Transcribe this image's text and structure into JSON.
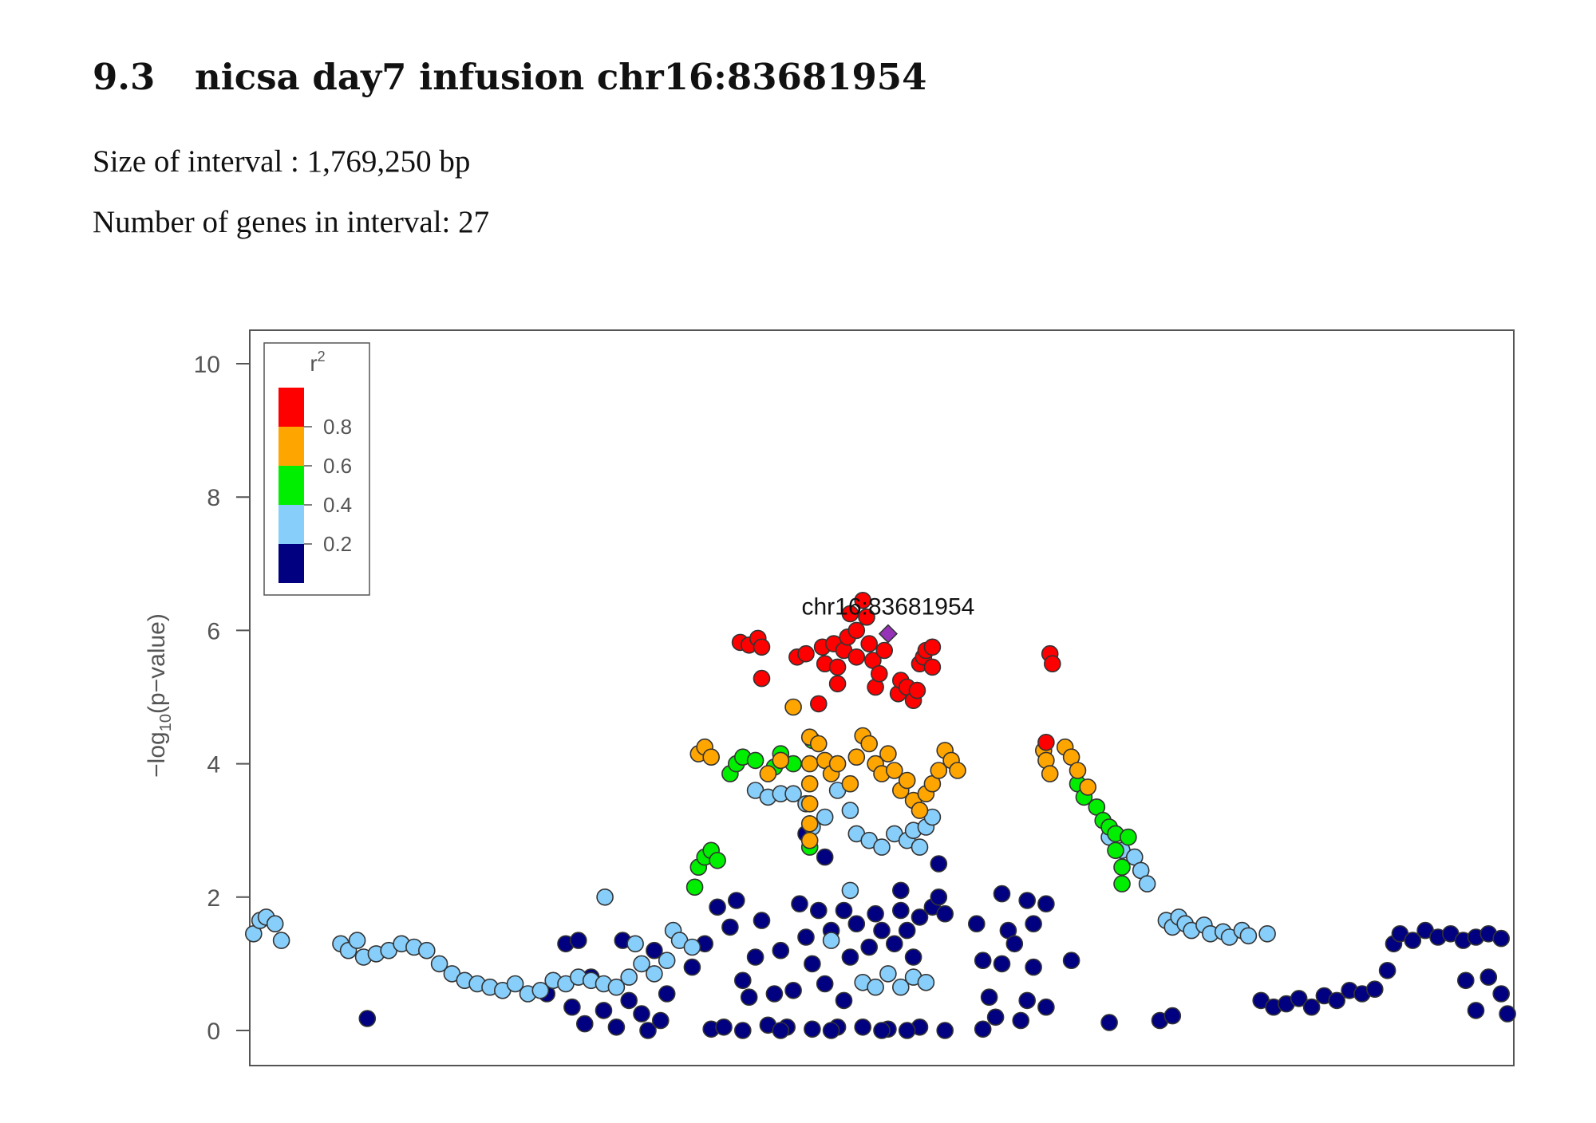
{
  "heading": {
    "section_number": "9.3",
    "title": "nicsa day7 infusion chr16:83681954"
  },
  "info": {
    "interval_label": "Size of interval : ",
    "interval_value": "1,769,250 bp",
    "genes_label": "Number of genes in interval: ",
    "genes_value": "27"
  },
  "chart_data": {
    "type": "scatter",
    "title": "",
    "xlabel": "",
    "ylabel": "−log10(p−value)",
    "ylim": [
      -0.5,
      10.5
    ],
    "yticks": [
      0,
      2,
      4,
      6,
      8,
      10
    ],
    "xlim": [
      0,
      100
    ],
    "x_axis_shown": false,
    "grid": false,
    "legend": {
      "title": "r²",
      "placement": "top-left",
      "bins": [
        {
          "range": [
            0.8,
            1.0
          ],
          "color": "#FF0000"
        },
        {
          "range": [
            0.6,
            0.8
          ],
          "color": "#FFA500"
        },
        {
          "range": [
            0.4,
            0.6
          ],
          "color": "#00EE00"
        },
        {
          "range": [
            0.2,
            0.4
          ],
          "color": "#87CEFA"
        },
        {
          "range": [
            0.0,
            0.2
          ],
          "color": "#000080"
        }
      ],
      "tick_labels": [
        "0.8",
        "0.6",
        "0.4",
        "0.2"
      ]
    },
    "index_snp": {
      "label": "chr16:83681954",
      "x": 50.5,
      "y": 5.95,
      "color": "#9632B8",
      "shape": "diamond"
    },
    "series": [
      {
        "r2_bin": "0.8-1.0",
        "color": "#FF0000",
        "points": [
          [
            38.8,
            5.82
          ],
          [
            39.5,
            5.78
          ],
          [
            40.2,
            5.88
          ],
          [
            40.5,
            5.75
          ],
          [
            40.5,
            5.28
          ],
          [
            43.3,
            5.6
          ],
          [
            44,
            5.65
          ],
          [
            45.3,
            5.75
          ],
          [
            45.5,
            5.5
          ],
          [
            46.2,
            5.8
          ],
          [
            46.5,
            5.45
          ],
          [
            46.5,
            5.2
          ],
          [
            47,
            5.7
          ],
          [
            47.3,
            5.9
          ],
          [
            47.5,
            6.25
          ],
          [
            48,
            5.6
          ],
          [
            48,
            6.0
          ],
          [
            48.5,
            6.45
          ],
          [
            48.8,
            6.2
          ],
          [
            49,
            5.8
          ],
          [
            49.3,
            5.55
          ],
          [
            49.5,
            5.15
          ],
          [
            49.8,
            5.35
          ],
          [
            50.2,
            5.7
          ],
          [
            51.3,
            5.05
          ],
          [
            51.5,
            5.25
          ],
          [
            52,
            5.15
          ],
          [
            52.5,
            4.95
          ],
          [
            52.8,
            5.1
          ],
          [
            53,
            5.5
          ],
          [
            53.3,
            5.6
          ],
          [
            53.5,
            5.7
          ],
          [
            54,
            5.75
          ],
          [
            54,
            5.45
          ],
          [
            63.3,
            5.65
          ],
          [
            63.5,
            5.5
          ],
          [
            45,
            4.9
          ],
          [
            63,
            4.32
          ]
        ]
      },
      {
        "r2_bin": "0.6-0.8",
        "color": "#FFA500",
        "points": [
          [
            35.5,
            4.15
          ],
          [
            36,
            4.25
          ],
          [
            36.5,
            4.1
          ],
          [
            41,
            3.85
          ],
          [
            42,
            4.05
          ],
          [
            43,
            4.85
          ],
          [
            44.3,
            4.4
          ],
          [
            44.3,
            4.0
          ],
          [
            44.3,
            3.7
          ],
          [
            44.3,
            3.4
          ],
          [
            44.3,
            3.1
          ],
          [
            44.3,
            2.85
          ],
          [
            45,
            4.3
          ],
          [
            45.5,
            4.05
          ],
          [
            46,
            3.85
          ],
          [
            46.5,
            4.0
          ],
          [
            47.5,
            3.7
          ],
          [
            48,
            4.1
          ],
          [
            48.5,
            4.42
          ],
          [
            49,
            4.3
          ],
          [
            49.5,
            4.0
          ],
          [
            50,
            3.85
          ],
          [
            50.5,
            4.15
          ],
          [
            51,
            3.9
          ],
          [
            51.5,
            3.6
          ],
          [
            52,
            3.75
          ],
          [
            52.5,
            3.45
          ],
          [
            53,
            3.3
          ],
          [
            53.5,
            3.55
          ],
          [
            54,
            3.7
          ],
          [
            54.5,
            3.9
          ],
          [
            55,
            4.2
          ],
          [
            55.5,
            4.05
          ],
          [
            56,
            3.9
          ],
          [
            62.8,
            4.2
          ],
          [
            63,
            4.05
          ],
          [
            63.3,
            3.85
          ],
          [
            64.5,
            4.25
          ],
          [
            65,
            4.1
          ],
          [
            65.5,
            3.9
          ],
          [
            66.3,
            3.65
          ]
        ]
      },
      {
        "r2_bin": "0.4-0.6",
        "color": "#00EE00",
        "points": [
          [
            35.2,
            2.15
          ],
          [
            35.5,
            2.45
          ],
          [
            36,
            2.6
          ],
          [
            36.5,
            2.7
          ],
          [
            37,
            2.55
          ],
          [
            38,
            3.85
          ],
          [
            38.5,
            4.0
          ],
          [
            39,
            4.1
          ],
          [
            40,
            4.05
          ],
          [
            41.5,
            3.95
          ],
          [
            42,
            4.15
          ],
          [
            43,
            4.0
          ],
          [
            44.3,
            2.75
          ],
          [
            44.5,
            4.35
          ],
          [
            65.5,
            3.7
          ],
          [
            66,
            3.5
          ],
          [
            67,
            3.35
          ],
          [
            67.5,
            3.15
          ],
          [
            68,
            3.05
          ],
          [
            68.5,
            2.95
          ],
          [
            68.5,
            2.7
          ],
          [
            69,
            2.45
          ],
          [
            69,
            2.2
          ],
          [
            69.5,
            2.9
          ]
        ]
      },
      {
        "r2_bin": "0.2-0.4",
        "color": "#87CEFA",
        "points": [
          [
            0.3,
            1.45
          ],
          [
            0.8,
            1.65
          ],
          [
            1.3,
            1.7
          ],
          [
            2,
            1.6
          ],
          [
            2.5,
            1.35
          ],
          [
            7.2,
            1.3
          ],
          [
            7.8,
            1.2
          ],
          [
            8.5,
            1.35
          ],
          [
            9,
            1.1
          ],
          [
            10,
            1.15
          ],
          [
            11,
            1.2
          ],
          [
            12,
            1.3
          ],
          [
            13,
            1.25
          ],
          [
            14,
            1.2
          ],
          [
            15,
            1.0
          ],
          [
            16,
            0.85
          ],
          [
            17,
            0.75
          ],
          [
            18,
            0.7
          ],
          [
            19,
            0.65
          ],
          [
            20,
            0.6
          ],
          [
            21,
            0.7
          ],
          [
            22,
            0.55
          ],
          [
            23,
            0.6
          ],
          [
            24,
            0.75
          ],
          [
            25,
            0.7
          ],
          [
            26,
            0.8
          ],
          [
            27,
            0.75
          ],
          [
            28,
            0.7
          ],
          [
            29,
            0.65
          ],
          [
            30,
            0.8
          ],
          [
            30.5,
            1.3
          ],
          [
            31,
            1.0
          ],
          [
            32,
            0.85
          ],
          [
            33,
            1.05
          ],
          [
            33.5,
            1.5
          ],
          [
            34,
            1.35
          ],
          [
            35,
            1.25
          ],
          [
            28.1,
            2.0
          ],
          [
            40,
            3.6
          ],
          [
            41,
            3.5
          ],
          [
            42,
            3.55
          ],
          [
            43,
            3.55
          ],
          [
            44,
            3.4
          ],
          [
            44.5,
            3.05
          ],
          [
            45.5,
            3.2
          ],
          [
            46.5,
            3.6
          ],
          [
            47.5,
            3.3
          ],
          [
            48,
            2.95
          ],
          [
            49,
            2.85
          ],
          [
            50,
            2.75
          ],
          [
            51,
            2.95
          ],
          [
            52,
            2.85
          ],
          [
            52.5,
            3.0
          ],
          [
            53,
            2.75
          ],
          [
            53.5,
            3.05
          ],
          [
            54,
            3.2
          ],
          [
            47.5,
            2.1
          ],
          [
            46,
            1.35
          ],
          [
            51.5,
            0.65
          ],
          [
            52.5,
            0.8
          ],
          [
            53.5,
            0.72
          ],
          [
            48.5,
            0.72
          ],
          [
            49.5,
            0.65
          ],
          [
            50.5,
            0.85
          ],
          [
            67,
            3.35
          ],
          [
            68,
            2.9
          ],
          [
            69,
            2.7
          ],
          [
            70,
            2.6
          ],
          [
            70.5,
            2.4
          ],
          [
            71,
            2.2
          ],
          [
            72.5,
            1.65
          ],
          [
            73,
            1.55
          ],
          [
            73.5,
            1.7
          ],
          [
            74,
            1.6
          ],
          [
            74.5,
            1.5
          ],
          [
            75.5,
            1.58
          ],
          [
            76,
            1.45
          ],
          [
            77,
            1.48
          ],
          [
            77.5,
            1.4
          ],
          [
            78.5,
            1.5
          ],
          [
            79,
            1.42
          ],
          [
            80.5,
            1.45
          ]
        ]
      },
      {
        "r2_bin": "0.0-0.2",
        "color": "#000080",
        "points": [
          [
            9.3,
            0.18
          ],
          [
            23.5,
            0.55
          ],
          [
            25,
            1.3
          ],
          [
            25.5,
            0.35
          ],
          [
            26,
            1.35
          ],
          [
            26.5,
            0.1
          ],
          [
            27,
            0.8
          ],
          [
            28,
            0.3
          ],
          [
            29,
            0.05
          ],
          [
            29.5,
            1.35
          ],
          [
            30,
            0.45
          ],
          [
            31,
            0.25
          ],
          [
            31.5,
            0.0
          ],
          [
            32,
            1.2
          ],
          [
            32.5,
            0.15
          ],
          [
            33,
            0.55
          ],
          [
            35,
            0.95
          ],
          [
            36,
            1.3
          ],
          [
            36.5,
            0.02
          ],
          [
            37,
            1.85
          ],
          [
            37.5,
            0.05
          ],
          [
            38,
            1.55
          ],
          [
            38.5,
            1.95
          ],
          [
            39,
            0.75
          ],
          [
            39.5,
            0.5
          ],
          [
            40,
            1.1
          ],
          [
            40.5,
            1.65
          ],
          [
            41,
            0.08
          ],
          [
            41.5,
            0.55
          ],
          [
            42,
            1.2
          ],
          [
            42.5,
            0.05
          ],
          [
            43,
            0.6
          ],
          [
            43.5,
            1.9
          ],
          [
            44,
            1.4
          ],
          [
            44.5,
            0.02
          ],
          [
            44.5,
            1.0
          ],
          [
            45,
            1.8
          ],
          [
            45.5,
            2.6
          ],
          [
            45.5,
            0.7
          ],
          [
            46,
            1.5
          ],
          [
            46.5,
            0.05
          ],
          [
            47,
            0.45
          ],
          [
            47,
            1.8
          ],
          [
            47.5,
            1.1
          ],
          [
            48,
            1.6
          ],
          [
            48.5,
            0.05
          ],
          [
            49,
            1.25
          ],
          [
            49.5,
            1.75
          ],
          [
            50,
            1.5
          ],
          [
            50.5,
            0.02
          ],
          [
            51,
            1.3
          ],
          [
            51.5,
            1.8
          ],
          [
            52,
            1.5
          ],
          [
            52.5,
            1.1
          ],
          [
            53,
            0.05
          ],
          [
            53,
            1.7
          ],
          [
            54,
            1.85
          ],
          [
            54.5,
            2.0
          ],
          [
            55,
            1.75
          ],
          [
            44,
            2.95
          ],
          [
            51.5,
            2.1
          ],
          [
            54.5,
            2.5
          ],
          [
            57.5,
            1.6
          ],
          [
            58,
            1.05
          ],
          [
            58.5,
            0.5
          ],
          [
            59,
            0.2
          ],
          [
            59.5,
            1.0
          ],
          [
            60,
            1.5
          ],
          [
            60.5,
            1.3
          ],
          [
            61,
            0.15
          ],
          [
            61.5,
            0.45
          ],
          [
            62,
            1.6
          ],
          [
            62,
            0.95
          ],
          [
            63,
            1.9
          ],
          [
            63,
            0.35
          ],
          [
            59.5,
            2.05
          ],
          [
            61.5,
            1.95
          ],
          [
            65,
            1.05
          ],
          [
            68,
            0.12
          ],
          [
            72,
            0.15
          ],
          [
            73,
            0.22
          ],
          [
            80,
            0.45
          ],
          [
            81,
            0.35
          ],
          [
            82,
            0.4
          ],
          [
            83,
            0.48
          ],
          [
            84,
            0.35
          ],
          [
            85,
            0.52
          ],
          [
            86,
            0.45
          ],
          [
            87,
            0.6
          ],
          [
            88,
            0.55
          ],
          [
            89,
            0.62
          ],
          [
            90,
            0.9
          ],
          [
            90.5,
            1.3
          ],
          [
            91,
            1.45
          ],
          [
            92,
            1.35
          ],
          [
            93,
            1.5
          ],
          [
            94,
            1.4
          ],
          [
            95,
            1.45
          ],
          [
            96,
            1.35
          ],
          [
            97,
            1.4
          ],
          [
            98,
            1.45
          ],
          [
            99,
            1.38
          ],
          [
            96.2,
            0.75
          ],
          [
            97,
            0.3
          ],
          [
            98,
            0.8
          ],
          [
            99,
            0.55
          ],
          [
            99.5,
            0.25
          ],
          [
            39,
            0.0
          ],
          [
            42,
            0.0
          ],
          [
            46,
            0.0
          ],
          [
            50,
            0.0
          ],
          [
            52,
            0.0
          ],
          [
            55,
            0.0
          ],
          [
            58,
            0.02
          ]
        ]
      }
    ]
  }
}
